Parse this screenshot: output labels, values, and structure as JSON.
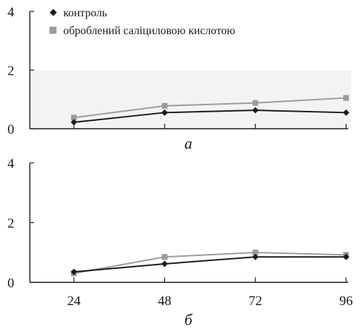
{
  "chart_data": [
    {
      "type": "line",
      "panel_label": "а",
      "x": [
        24,
        48,
        72,
        96
      ],
      "ylim": [
        0,
        4
      ],
      "yticks": [
        "0",
        "2",
        "4"
      ],
      "series": [
        {
          "name": "контроль",
          "marker": "diamond",
          "color": "#1a1a1a",
          "values": [
            0.22,
            0.55,
            0.63,
            0.55
          ]
        },
        {
          "name": "оброблений саліциловою кислотою",
          "marker": "square",
          "color": "#9b9b9b",
          "values": [
            0.38,
            0.78,
            0.88,
            1.05
          ]
        }
      ]
    },
    {
      "type": "line",
      "panel_label": "б",
      "x": [
        24,
        48,
        72,
        96
      ],
      "xticks": [
        "24",
        "48",
        "72",
        "96"
      ],
      "ylim": [
        0,
        4
      ],
      "yticks": [
        "0",
        "2",
        "4"
      ],
      "series": [
        {
          "name": "контроль",
          "marker": "diamond",
          "color": "#1a1a1a",
          "values": [
            0.35,
            0.62,
            0.85,
            0.85
          ]
        },
        {
          "name": "оброблений саліциловою кислотою",
          "marker": "square",
          "color": "#9b9b9b",
          "values": [
            0.3,
            0.85,
            1.0,
            0.92
          ]
        }
      ]
    }
  ]
}
